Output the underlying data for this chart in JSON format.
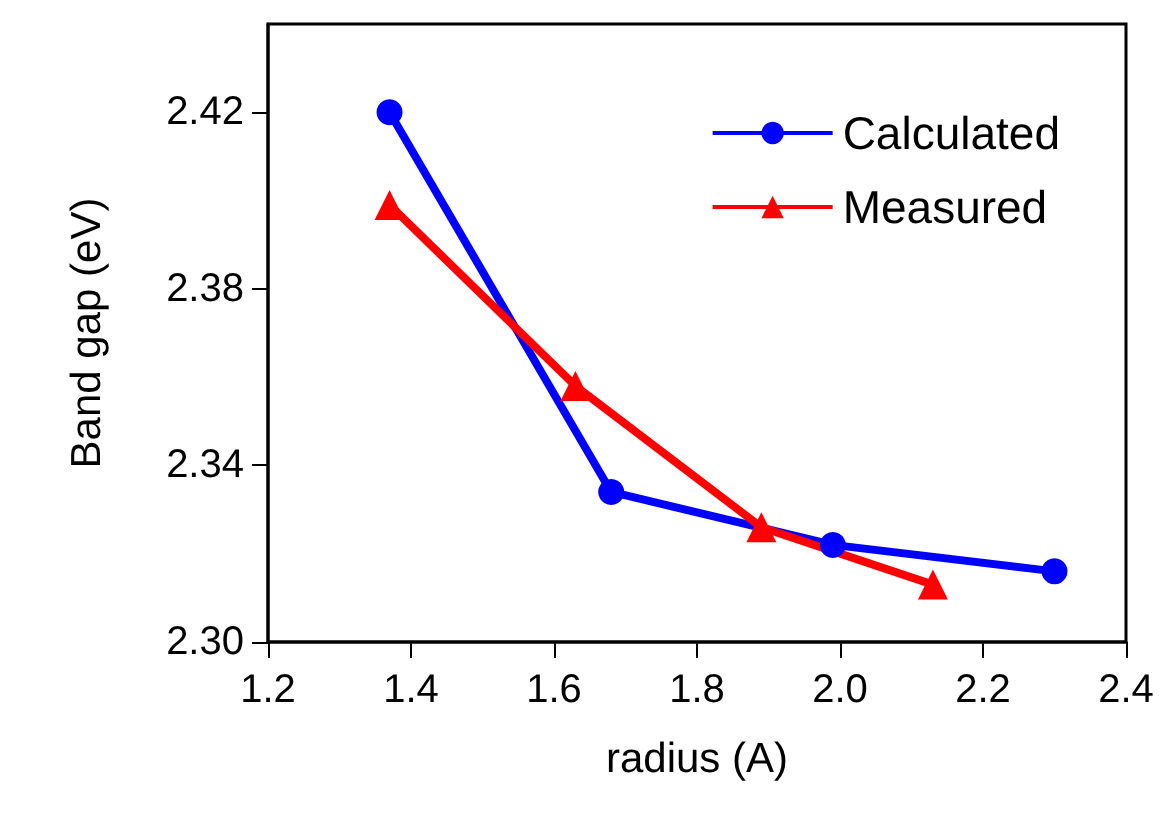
{
  "chart_data": {
    "type": "line",
    "xlabel": "radius (A)",
    "ylabel": "Band gap (eV)",
    "xlim": [
      1.2,
      2.4
    ],
    "xticks": [
      {
        "value": 1.2,
        "label": "1.2"
      },
      {
        "value": 1.4,
        "label": "1.4"
      },
      {
        "value": 1.6,
        "label": "1.6"
      },
      {
        "value": 1.8,
        "label": "1.8"
      },
      {
        "value": 2.0,
        "label": "2.0"
      },
      {
        "value": 2.2,
        "label": "2.2"
      },
      {
        "value": 2.4,
        "label": "2.4"
      }
    ],
    "ylim": [
      2.3,
      2.44
    ],
    "yticks": [
      {
        "value": 2.3,
        "label": "2.30"
      },
      {
        "value": 2.34,
        "label": "2.34"
      },
      {
        "value": 2.38,
        "label": "2.38"
      },
      {
        "value": 2.42,
        "label": "2.42"
      }
    ],
    "series": [
      {
        "name": "Calculated",
        "color": "#0000ff",
        "marker": "circle",
        "x": [
          1.37,
          1.68,
          1.99,
          2.3
        ],
        "values": [
          2.42,
          2.334,
          2.322,
          2.316
        ]
      },
      {
        "name": "Measured",
        "color": "#ff0000",
        "marker": "triangle",
        "x": [
          1.37,
          1.63,
          1.89,
          2.13
        ],
        "values": [
          2.399,
          2.358,
          2.326,
          2.313
        ]
      }
    ],
    "legend": "top right",
    "grid": false
  }
}
